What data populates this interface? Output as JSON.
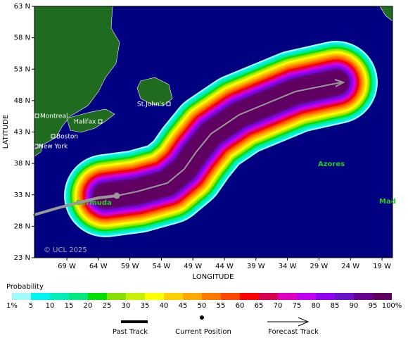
{
  "map": {
    "ylabel": "LATITUDE",
    "xlabel": "LONGITUDE",
    "lat_ticks": [
      {
        "value": 63,
        "label": "63 N"
      },
      {
        "value": 58,
        "label": "58 N"
      },
      {
        "value": 53,
        "label": "53 N"
      },
      {
        "value": 48,
        "label": "48 N"
      },
      {
        "value": 43,
        "label": "43 N"
      },
      {
        "value": 38,
        "label": "38 N"
      },
      {
        "value": 33,
        "label": "33 N"
      },
      {
        "value": 28,
        "label": "28 N"
      },
      {
        "value": 23,
        "label": "23 N"
      }
    ],
    "lon_ticks": [
      {
        "value": 69,
        "label": "69 W"
      },
      {
        "value": 64,
        "label": "64 W"
      },
      {
        "value": 59,
        "label": "59 W"
      },
      {
        "value": 54,
        "label": "54 W"
      },
      {
        "value": 49,
        "label": "49 W"
      },
      {
        "value": 44,
        "label": "44 W"
      },
      {
        "value": 39,
        "label": "39 W"
      },
      {
        "value": 34,
        "label": "34 W"
      },
      {
        "value": 29,
        "label": "29 W"
      },
      {
        "value": 24,
        "label": "24 W"
      },
      {
        "value": 19,
        "label": "19 W"
      }
    ],
    "places": [
      "Montreal",
      "Halifax",
      "Boston",
      "New York",
      "St.John's",
      "Bermuda",
      "Azores",
      "Mad"
    ],
    "copyright": "© UCL 2025",
    "legend_title": "Probability",
    "probability_labels": [
      "1%",
      "5",
      "10",
      "15",
      "20",
      "25",
      "30",
      "35",
      "40",
      "45",
      "50",
      "55",
      "60",
      "65",
      "70",
      "75",
      "80",
      "85",
      "90",
      "95",
      "100%"
    ],
    "probability_colors": [
      "#a0fcfc",
      "#00f4f4",
      "#00eeb8",
      "#00e880",
      "#00e000",
      "#88e000",
      "#c8f000",
      "#ffff00",
      "#ffd000",
      "#ffa800",
      "#ff7800",
      "#ff4800",
      "#ff0000",
      "#d80050",
      "#e000c0",
      "#c000f0",
      "#9000f0",
      "#6a10c8",
      "#6a0090",
      "#600060"
    ],
    "track_legend": [
      "Past Track",
      "Current Position",
      "Forecast Track"
    ]
  }
}
